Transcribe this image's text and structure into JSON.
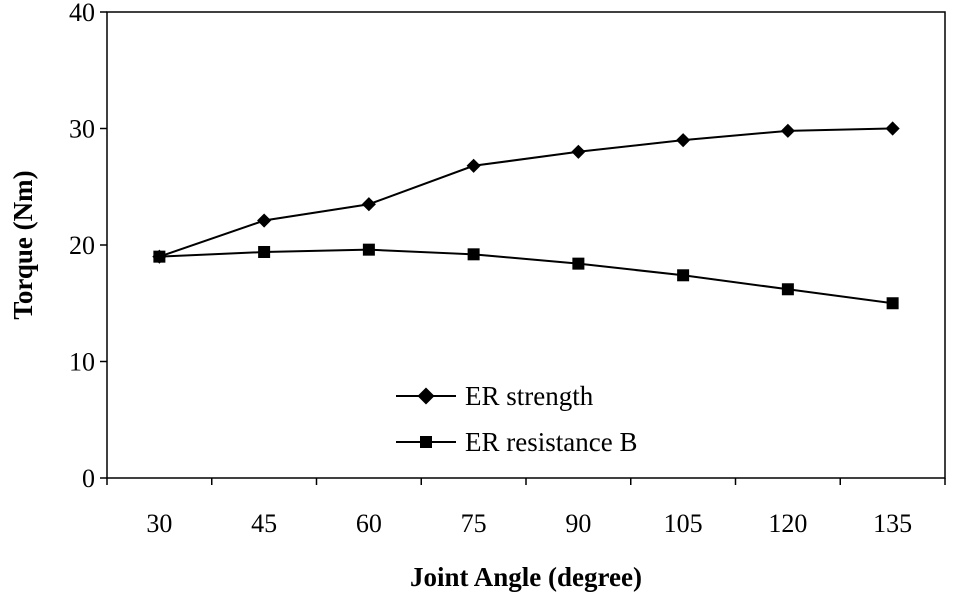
{
  "chart_data": {
    "type": "line",
    "title": "",
    "xlabel": "Joint Angle (degree)",
    "ylabel": "Torque (Nm)",
    "categories": [
      "30",
      "45",
      "60",
      "75",
      "90",
      "105",
      "120",
      "135"
    ],
    "ylim": [
      0,
      40
    ],
    "yticks": [
      "0",
      "10",
      "20",
      "30",
      "40"
    ],
    "grid": false,
    "legend_position": "bottom-center",
    "series": [
      {
        "name": "ER strength",
        "marker": "diamond",
        "color": "#000000",
        "values": [
          19.0,
          22.1,
          23.5,
          26.8,
          28.0,
          29.0,
          29.8,
          30.0
        ]
      },
      {
        "name": "ER resistance B",
        "marker": "square",
        "color": "#000000",
        "values": [
          19.0,
          19.4,
          19.6,
          19.2,
          18.4,
          17.4,
          16.2,
          15.0
        ]
      }
    ]
  }
}
